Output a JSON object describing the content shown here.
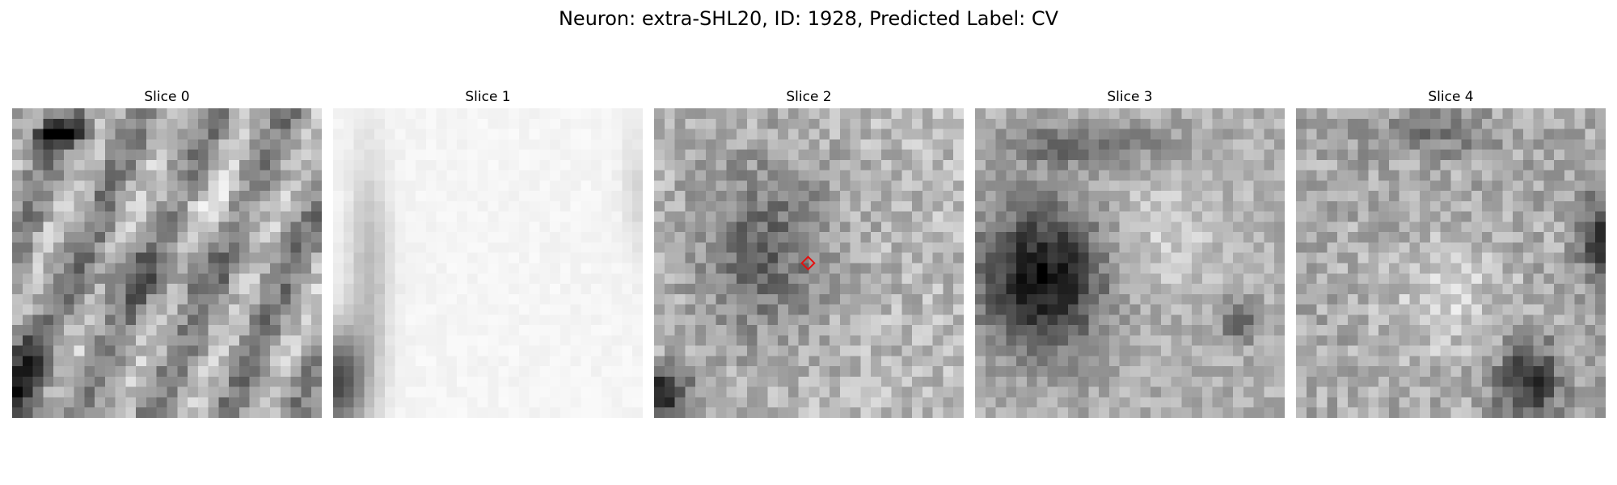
{
  "figure": {
    "title": "Neuron: extra-SHL20, ID: 1928, Predicted Label: CV"
  },
  "panels": [
    {
      "title": "Slice 0",
      "style": "slice0",
      "seed": 11
    },
    {
      "title": "Slice 1",
      "style": "slice1",
      "seed": 23
    },
    {
      "title": "Slice 2",
      "style": "slice2",
      "seed": 37
    },
    {
      "title": "Slice 3",
      "style": "slice3",
      "seed": 41
    },
    {
      "title": "Slice 4",
      "style": "slice4",
      "seed": 59
    }
  ],
  "marker": {
    "panel": 2,
    "shape": "diamond",
    "color": "#e3100f"
  }
}
